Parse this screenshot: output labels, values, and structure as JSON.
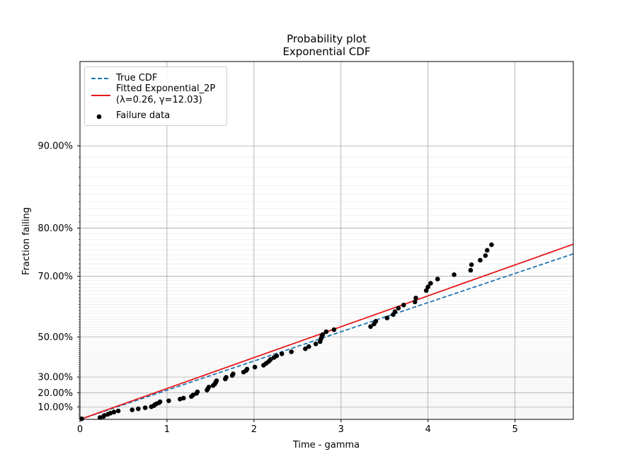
{
  "chart_data": {
    "type": "scatter",
    "title": "Probability plot",
    "subtitle": "Exponential CDF",
    "xlabel": "Time - gamma",
    "ylabel": "Fraction failing",
    "xlim": [
      0,
      5.67
    ],
    "ylim": [
      0,
      0.9
    ],
    "y_scale": "exponential probability (-ln(1-F))",
    "grid": true,
    "legend_position": "top-left",
    "x_ticks": [
      0,
      1,
      2,
      3,
      4,
      5
    ],
    "y_ticks": [
      {
        "value": 0.1,
        "label": "10.00%"
      },
      {
        "value": 0.2,
        "label": "20.00%"
      },
      {
        "value": 0.3,
        "label": "30.00%"
      },
      {
        "value": 0.5,
        "label": "50.00%"
      },
      {
        "value": 0.7,
        "label": "70.00%"
      },
      {
        "value": 0.8,
        "label": "80.00%"
      },
      {
        "value": 0.9,
        "label": "90.00%"
      }
    ],
    "series": [
      {
        "name": "True CDF",
        "kind": "line",
        "style": "dashed",
        "color": "#1f77b4",
        "rate": 0.2457
      },
      {
        "name": "Fitted Exponential_2P",
        "label_line2": "(λ=0.26, γ=12.03)",
        "kind": "line",
        "style": "solid",
        "color": "#e8171b",
        "rate": 0.26
      },
      {
        "name": "Failure data",
        "kind": "scatter",
        "color": "#000000",
        "points": [
          {
            "x": 0.02,
            "y": 0.005
          },
          {
            "x": 0.23,
            "y": 0.015
          },
          {
            "x": 0.27,
            "y": 0.024
          },
          {
            "x": 0.28,
            "y": 0.033
          },
          {
            "x": 0.32,
            "y": 0.042
          },
          {
            "x": 0.35,
            "y": 0.051
          },
          {
            "x": 0.39,
            "y": 0.06
          },
          {
            "x": 0.44,
            "y": 0.069
          },
          {
            "x": 0.6,
            "y": 0.077
          },
          {
            "x": 0.67,
            "y": 0.085
          },
          {
            "x": 0.75,
            "y": 0.093
          },
          {
            "x": 0.82,
            "y": 0.101
          },
          {
            "x": 0.85,
            "y": 0.109
          },
          {
            "x": 0.86,
            "y": 0.116
          },
          {
            "x": 0.88,
            "y": 0.124
          },
          {
            "x": 0.91,
            "y": 0.131
          },
          {
            "x": 0.92,
            "y": 0.138
          },
          {
            "x": 1.02,
            "y": 0.145
          },
          {
            "x": 1.15,
            "y": 0.157
          },
          {
            "x": 1.19,
            "y": 0.164
          },
          {
            "x": 1.28,
            "y": 0.175
          },
          {
            "x": 1.3,
            "y": 0.186
          },
          {
            "x": 1.34,
            "y": 0.197
          },
          {
            "x": 1.35,
            "y": 0.207
          },
          {
            "x": 1.46,
            "y": 0.218
          },
          {
            "x": 1.47,
            "y": 0.228
          },
          {
            "x": 1.48,
            "y": 0.238
          },
          {
            "x": 1.53,
            "y": 0.248
          },
          {
            "x": 1.55,
            "y": 0.258
          },
          {
            "x": 1.56,
            "y": 0.268
          },
          {
            "x": 1.57,
            "y": 0.278
          },
          {
            "x": 1.67,
            "y": 0.288
          },
          {
            "x": 1.68,
            "y": 0.298
          },
          {
            "x": 1.75,
            "y": 0.309
          },
          {
            "x": 1.76,
            "y": 0.318
          },
          {
            "x": 1.88,
            "y": 0.328
          },
          {
            "x": 1.91,
            "y": 0.337
          },
          {
            "x": 1.92,
            "y": 0.345
          },
          {
            "x": 2.01,
            "y": 0.356
          },
          {
            "x": 2.11,
            "y": 0.366
          },
          {
            "x": 2.14,
            "y": 0.376
          },
          {
            "x": 2.17,
            "y": 0.386
          },
          {
            "x": 2.19,
            "y": 0.396
          },
          {
            "x": 2.23,
            "y": 0.406
          },
          {
            "x": 2.26,
            "y": 0.414
          },
          {
            "x": 2.32,
            "y": 0.424
          },
          {
            "x": 2.43,
            "y": 0.434
          },
          {
            "x": 2.59,
            "y": 0.448
          },
          {
            "x": 2.63,
            "y": 0.458
          },
          {
            "x": 2.71,
            "y": 0.47
          },
          {
            "x": 2.76,
            "y": 0.48
          },
          {
            "x": 2.77,
            "y": 0.492
          },
          {
            "x": 2.78,
            "y": 0.503
          },
          {
            "x": 2.79,
            "y": 0.51
          },
          {
            "x": 2.83,
            "y": 0.522
          },
          {
            "x": 2.92,
            "y": 0.53
          },
          {
            "x": 3.34,
            "y": 0.542
          },
          {
            "x": 3.38,
            "y": 0.552
          },
          {
            "x": 3.4,
            "y": 0.562
          },
          {
            "x": 3.53,
            "y": 0.574
          },
          {
            "x": 3.6,
            "y": 0.586
          },
          {
            "x": 3.62,
            "y": 0.596
          },
          {
            "x": 3.66,
            "y": 0.608
          },
          {
            "x": 3.72,
            "y": 0.618
          },
          {
            "x": 3.85,
            "y": 0.628
          },
          {
            "x": 3.86,
            "y": 0.64
          },
          {
            "x": 3.98,
            "y": 0.662
          },
          {
            "x": 4.0,
            "y": 0.672
          },
          {
            "x": 4.03,
            "y": 0.682
          },
          {
            "x": 4.11,
            "y": 0.693
          },
          {
            "x": 4.3,
            "y": 0.704
          },
          {
            "x": 4.49,
            "y": 0.715
          },
          {
            "x": 4.5,
            "y": 0.728
          },
          {
            "x": 4.6,
            "y": 0.738
          },
          {
            "x": 4.66,
            "y": 0.748
          },
          {
            "x": 4.68,
            "y": 0.759
          },
          {
            "x": 4.73,
            "y": 0.77
          }
        ]
      }
    ]
  }
}
